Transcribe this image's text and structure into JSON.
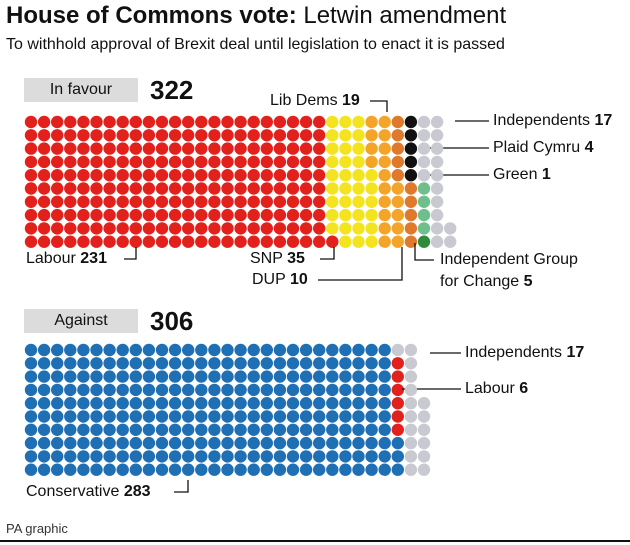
{
  "title_bold": "House of Commons vote:",
  "title_rest": "Letwin amendment",
  "subtitle": "To withhold approval of Brexit deal until legislation to enact it is passed",
  "source": "PA graphic",
  "chart_data": [
    {
      "type": "waffle",
      "label": "In favour",
      "total": 322,
      "rows": 10,
      "categories": [
        "Labour",
        "SNP",
        "Lib Dems",
        "DUP",
        "Independent Group for Change",
        "Green",
        "Plaid Cymru",
        "Independents"
      ],
      "values": [
        231,
        35,
        19,
        10,
        5,
        1,
        4,
        17
      ],
      "colors": [
        "#e3211c",
        "#f4e41f",
        "#f5a42a",
        "#df7a2c",
        "#111111",
        "#2f8a3c",
        "#6fbf8c",
        "#c9c9d1"
      ]
    },
    {
      "type": "waffle",
      "label": "Against",
      "total": 306,
      "rows": 10,
      "categories": [
        "Conservative",
        "Labour",
        "Independents"
      ],
      "values": [
        283,
        6,
        17
      ],
      "colors": [
        "#1f6fb5",
        "#e3211c",
        "#c9c9d1"
      ]
    }
  ]
}
